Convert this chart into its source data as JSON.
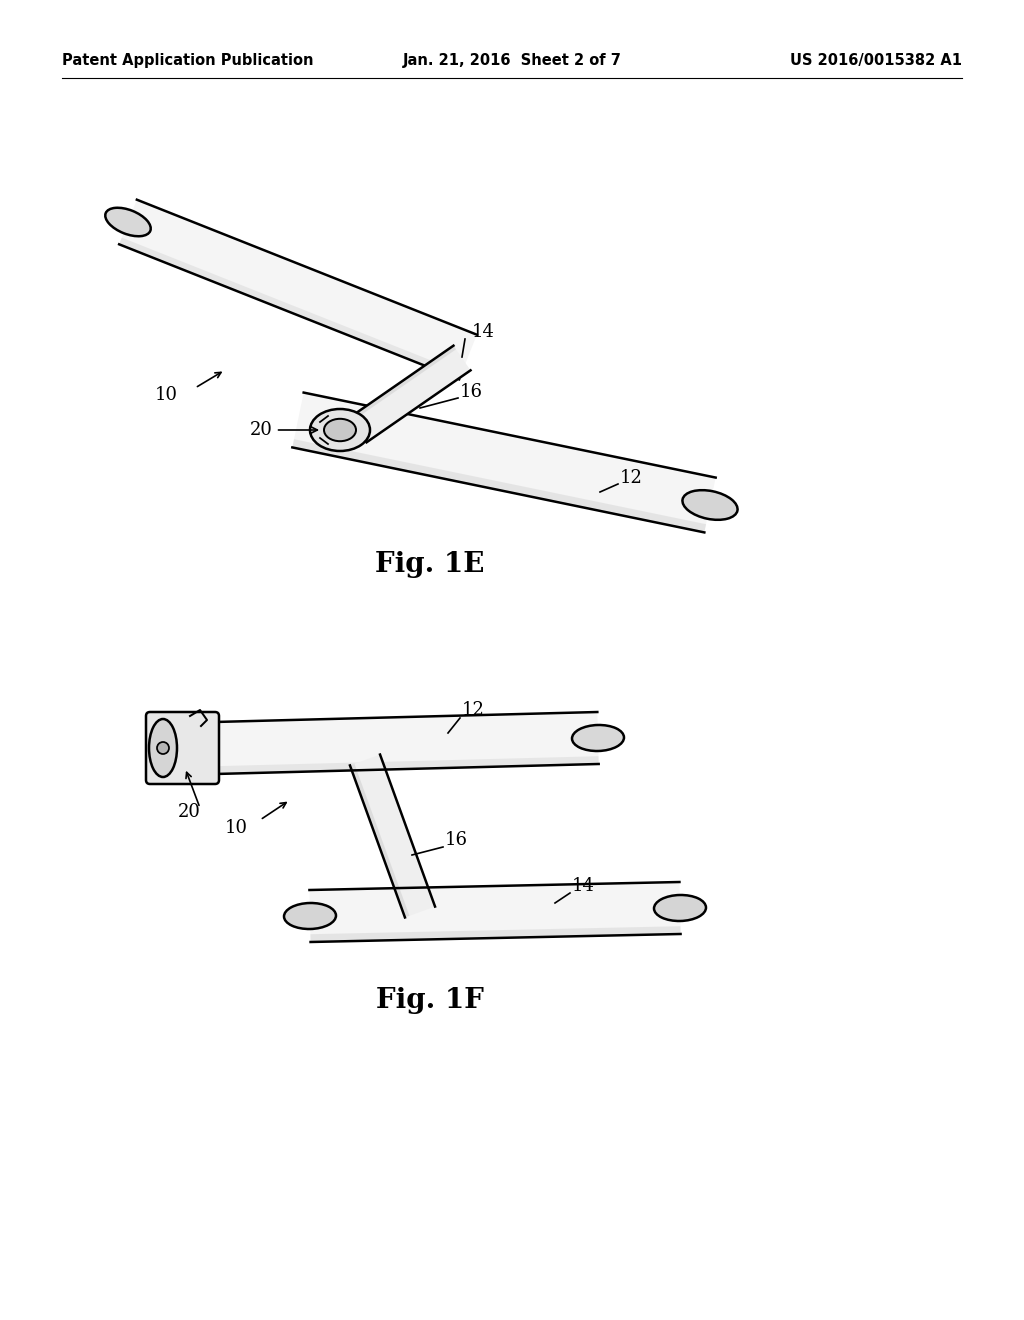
{
  "background_color": "#ffffff",
  "header_left": "Patent Application Publication",
  "header_center": "Jan. 21, 2016  Sheet 2 of 7",
  "header_right": "US 2016/0015382 A1",
  "header_fontsize": 10.5,
  "fig1e_label": "Fig. 1E",
  "fig1f_label": "Fig. 1F",
  "label_fontsize": 20,
  "annotation_fontsize": 13,
  "line_color": "#000000",
  "line_width": 1.8,
  "fill_light": "#f8f8f8",
  "fill_mid": "#e8e8e8",
  "fill_dark": "#d0d0d0"
}
